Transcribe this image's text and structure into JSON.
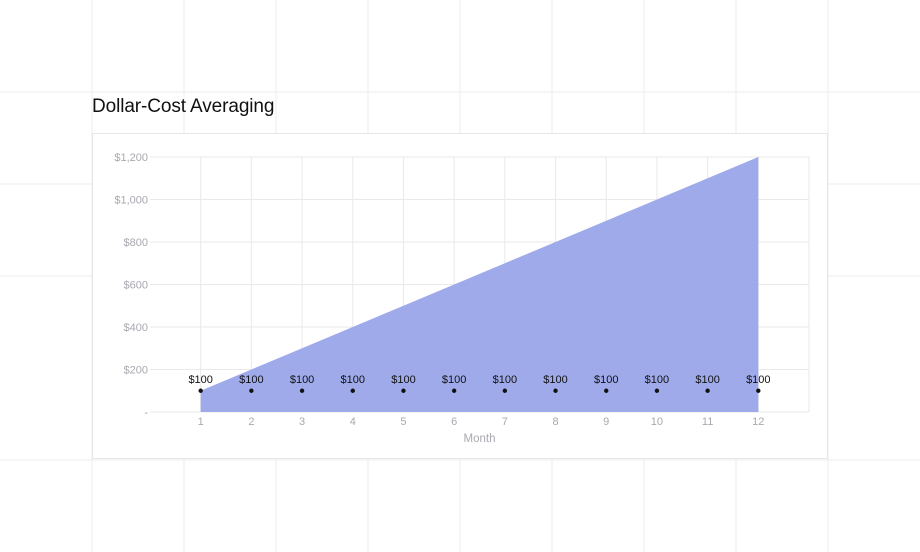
{
  "chart_data": {
    "type": "area",
    "title": "Dollar-Cost Averaging",
    "xlabel": "Month",
    "ylabel": "",
    "x": [
      1,
      2,
      3,
      4,
      5,
      6,
      7,
      8,
      9,
      10,
      11,
      12
    ],
    "series": [
      {
        "values": [
          100,
          200,
          300,
          400,
          500,
          600,
          700,
          800,
          900,
          1000,
          1100,
          1200
        ],
        "color": "#9aa5ea"
      }
    ],
    "points": {
      "values": [
        100,
        100,
        100,
        100,
        100,
        100,
        100,
        100,
        100,
        100,
        100,
        100
      ],
      "labels": [
        "$100",
        "$100",
        "$100",
        "$100",
        "$100",
        "$100",
        "$100",
        "$100",
        "$100",
        "$100",
        "$100",
        "$100"
      ],
      "color": "#111111"
    },
    "ylim": [
      0,
      1200
    ],
    "xlim": [
      0,
      13
    ],
    "yticks": [
      0,
      200,
      400,
      600,
      800,
      1000,
      1200
    ],
    "ytick_labels": [
      "-",
      "$200",
      "$400",
      "$600",
      "$800",
      "$1,000",
      "$1,200"
    ],
    "xtick_labels": [
      "1",
      "2",
      "3",
      "4",
      "5",
      "6",
      "7",
      "8",
      "9",
      "10",
      "11",
      "12"
    ],
    "grid": true,
    "colors": {
      "area": "#9aa5ea",
      "grid": "#e9e9e9",
      "tick_text": "#a8a8b0",
      "marker": "#111111"
    }
  }
}
